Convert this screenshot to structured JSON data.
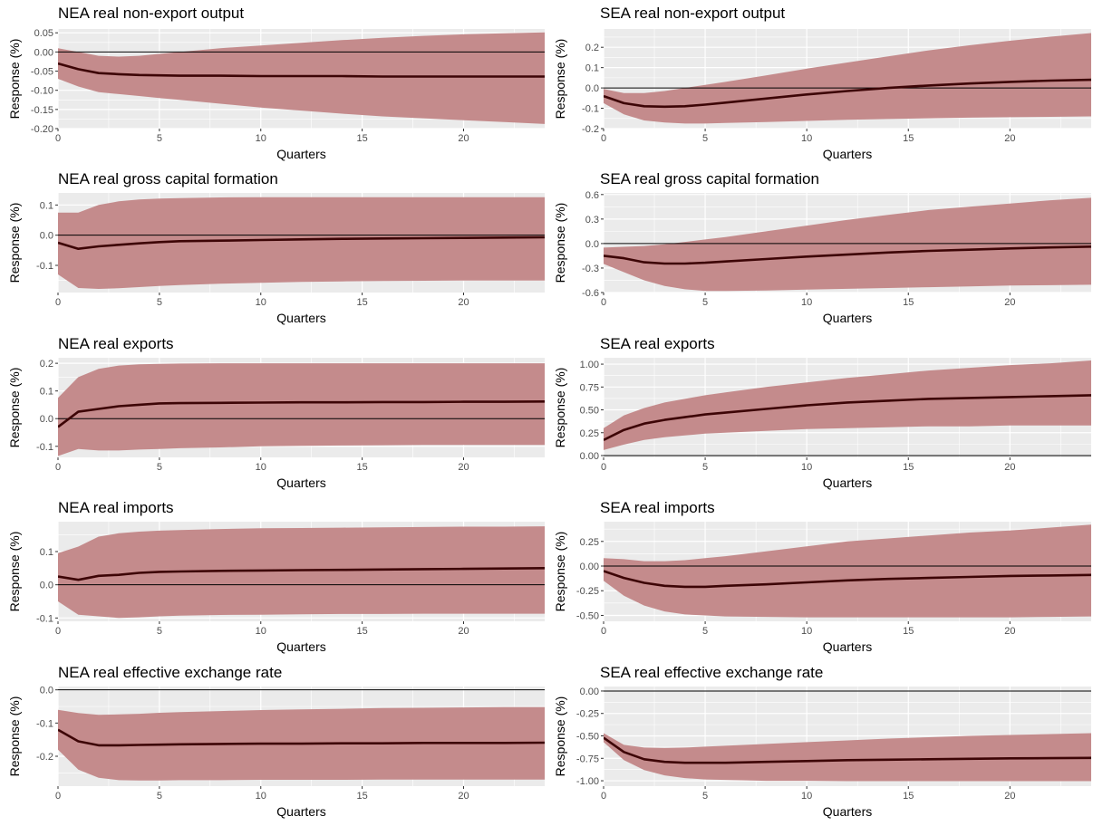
{
  "figure": {
    "xlabel": "Quarters",
    "ylabel": "Response (%)",
    "colors": {
      "panel_bg": "#ebebeb",
      "grid": "#ffffff",
      "band": "#c48b8c",
      "line": "#3d0506",
      "zero": "#000000"
    }
  },
  "chart_data": [
    {
      "type": "area",
      "title": "NEA real non-export output",
      "xlabel": "Quarters",
      "ylabel": "Response (%)",
      "xlim": [
        0,
        24
      ],
      "ylim": [
        -0.2,
        0.06
      ],
      "xticks": [
        0,
        5,
        10,
        15,
        20
      ],
      "yticks": [
        -0.2,
        -0.15,
        -0.1,
        -0.05,
        0,
        0.05
      ],
      "ytick_labels": [
        "-0.20",
        "-0.15",
        "-0.10",
        "-0.05",
        "0.00",
        "0.05"
      ],
      "x": [
        0,
        1,
        2,
        3,
        4,
        5,
        6,
        8,
        10,
        12,
        14,
        16,
        18,
        20,
        22,
        24
      ],
      "median": [
        -0.03,
        -0.045,
        -0.055,
        -0.058,
        -0.06,
        -0.061,
        -0.062,
        -0.062,
        -0.063,
        -0.063,
        -0.063,
        -0.064,
        -0.064,
        -0.064,
        -0.064,
        -0.064
      ],
      "upper": [
        0.01,
        0.0,
        -0.01,
        -0.012,
        -0.01,
        -0.005,
        0.0,
        0.01,
        0.017,
        0.024,
        0.031,
        0.037,
        0.042,
        0.046,
        0.049,
        0.051
      ],
      "lower": [
        -0.07,
        -0.09,
        -0.105,
        -0.11,
        -0.115,
        -0.12,
        -0.125,
        -0.135,
        -0.145,
        -0.153,
        -0.161,
        -0.168,
        -0.173,
        -0.178,
        -0.183,
        -0.188
      ]
    },
    {
      "type": "area",
      "title": "SEA real non-export output",
      "xlabel": "Quarters",
      "ylabel": "Response (%)",
      "xlim": [
        0,
        24
      ],
      "ylim": [
        -0.2,
        0.29
      ],
      "xticks": [
        0,
        5,
        10,
        15,
        20
      ],
      "yticks": [
        -0.2,
        -0.1,
        0,
        0.1,
        0.2
      ],
      "ytick_labels": [
        "-0.2",
        "-0.1",
        "0.0",
        "0.1",
        "0.2"
      ],
      "x": [
        0,
        1,
        2,
        3,
        4,
        5,
        6,
        8,
        10,
        12,
        14,
        16,
        18,
        20,
        22,
        24
      ],
      "median": [
        -0.04,
        -0.075,
        -0.09,
        -0.092,
        -0.09,
        -0.082,
        -0.072,
        -0.052,
        -0.032,
        -0.015,
        0.0,
        0.012,
        0.022,
        0.03,
        0.036,
        0.04
      ],
      "upper": [
        -0.005,
        -0.025,
        -0.025,
        -0.015,
        0.0,
        0.015,
        0.03,
        0.062,
        0.095,
        0.125,
        0.155,
        0.185,
        0.21,
        0.232,
        0.252,
        0.27
      ],
      "lower": [
        -0.075,
        -0.13,
        -0.16,
        -0.17,
        -0.175,
        -0.175,
        -0.172,
        -0.168,
        -0.162,
        -0.157,
        -0.153,
        -0.149,
        -0.146,
        -0.144,
        -0.142,
        -0.14
      ]
    },
    {
      "type": "area",
      "title": "NEA real gross capital formation",
      "xlabel": "Quarters",
      "ylabel": "Response (%)",
      "xlim": [
        0,
        24
      ],
      "ylim": [
        -0.19,
        0.14
      ],
      "xticks": [
        0,
        5,
        10,
        15,
        20
      ],
      "yticks": [
        -0.1,
        0,
        0.1
      ],
      "ytick_labels": [
        "-0.1",
        "0.0",
        "0.1"
      ],
      "x": [
        0,
        1,
        2,
        3,
        4,
        5,
        6,
        8,
        10,
        12,
        14,
        16,
        18,
        20,
        22,
        24
      ],
      "median": [
        -0.025,
        -0.045,
        -0.037,
        -0.032,
        -0.027,
        -0.023,
        -0.02,
        -0.018,
        -0.016,
        -0.014,
        -0.012,
        -0.011,
        -0.01,
        -0.009,
        -0.008,
        -0.007
      ],
      "upper": [
        0.075,
        0.075,
        0.1,
        0.112,
        0.118,
        0.121,
        0.123,
        0.125,
        0.126,
        0.126,
        0.126,
        0.126,
        0.126,
        0.126,
        0.126,
        0.126
      ],
      "lower": [
        -0.13,
        -0.175,
        -0.178,
        -0.176,
        -0.172,
        -0.168,
        -0.165,
        -0.161,
        -0.158,
        -0.155,
        -0.153,
        -0.152,
        -0.151,
        -0.15,
        -0.15,
        -0.15
      ]
    },
    {
      "type": "area",
      "title": "SEA real gross capital formation",
      "xlabel": "Quarters",
      "ylabel": "Response (%)",
      "xlim": [
        0,
        24
      ],
      "ylim": [
        -0.6,
        0.62
      ],
      "xticks": [
        0,
        5,
        10,
        15,
        20
      ],
      "yticks": [
        -0.6,
        -0.3,
        0,
        0.3,
        0.6
      ],
      "ytick_labels": [
        "-0.6",
        "-0.3",
        "0.0",
        "0.3",
        "0.6"
      ],
      "x": [
        0,
        1,
        2,
        3,
        4,
        5,
        6,
        8,
        10,
        12,
        14,
        16,
        18,
        20,
        22,
        24
      ],
      "median": [
        -0.15,
        -0.18,
        -0.23,
        -0.245,
        -0.245,
        -0.235,
        -0.22,
        -0.19,
        -0.16,
        -0.135,
        -0.11,
        -0.09,
        -0.075,
        -0.06,
        -0.048,
        -0.038
      ],
      "upper": [
        -0.05,
        -0.04,
        -0.03,
        -0.01,
        0.02,
        0.05,
        0.08,
        0.15,
        0.22,
        0.29,
        0.35,
        0.41,
        0.45,
        0.49,
        0.53,
        0.56
      ],
      "lower": [
        -0.25,
        -0.35,
        -0.45,
        -0.52,
        -0.56,
        -0.58,
        -0.58,
        -0.575,
        -0.565,
        -0.555,
        -0.545,
        -0.535,
        -0.525,
        -0.515,
        -0.51,
        -0.505
      ]
    },
    {
      "type": "area",
      "title": "NEA real exports",
      "xlabel": "Quarters",
      "ylabel": "Response (%)",
      "xlim": [
        0,
        24
      ],
      "ylim": [
        -0.14,
        0.22
      ],
      "xticks": [
        0,
        5,
        10,
        15,
        20
      ],
      "yticks": [
        -0.1,
        0,
        0.1,
        0.2
      ],
      "ytick_labels": [
        "-0.1",
        "0.0",
        "0.1",
        "0.2"
      ],
      "x": [
        0,
        1,
        2,
        3,
        4,
        5,
        6,
        8,
        10,
        12,
        14,
        16,
        18,
        20,
        22,
        24
      ],
      "median": [
        -0.03,
        0.025,
        0.035,
        0.045,
        0.05,
        0.055,
        0.056,
        0.057,
        0.058,
        0.059,
        0.059,
        0.06,
        0.06,
        0.061,
        0.061,
        0.062
      ],
      "upper": [
        0.075,
        0.15,
        0.18,
        0.192,
        0.196,
        0.198,
        0.199,
        0.2,
        0.2,
        0.2,
        0.2,
        0.2,
        0.2,
        0.2,
        0.2,
        0.2
      ],
      "lower": [
        -0.135,
        -0.11,
        -0.115,
        -0.115,
        -0.112,
        -0.11,
        -0.107,
        -0.104,
        -0.1,
        -0.098,
        -0.097,
        -0.096,
        -0.095,
        -0.095,
        -0.095,
        -0.095
      ]
    },
    {
      "type": "area",
      "title": "SEA real exports",
      "xlabel": "Quarters",
      "ylabel": "Response (%)",
      "xlim": [
        0,
        24
      ],
      "ylim": [
        -0.02,
        1.07
      ],
      "xticks": [
        0,
        5,
        10,
        15,
        20
      ],
      "yticks": [
        0,
        0.25,
        0.5,
        0.75,
        1.0
      ],
      "ytick_labels": [
        "0.00",
        "0.25",
        "0.50",
        "0.75",
        "1.00"
      ],
      "x": [
        0,
        1,
        2,
        3,
        4,
        5,
        6,
        8,
        10,
        12,
        14,
        16,
        18,
        20,
        22,
        24
      ],
      "median": [
        0.17,
        0.28,
        0.35,
        0.39,
        0.42,
        0.45,
        0.47,
        0.51,
        0.55,
        0.58,
        0.6,
        0.62,
        0.63,
        0.64,
        0.65,
        0.66
      ],
      "upper": [
        0.3,
        0.44,
        0.52,
        0.58,
        0.62,
        0.66,
        0.69,
        0.75,
        0.8,
        0.85,
        0.89,
        0.93,
        0.96,
        0.99,
        1.01,
        1.04
      ],
      "lower": [
        0.06,
        0.12,
        0.17,
        0.2,
        0.22,
        0.24,
        0.25,
        0.27,
        0.29,
        0.3,
        0.31,
        0.32,
        0.32,
        0.33,
        0.33,
        0.33
      ]
    },
    {
      "type": "area",
      "title": "NEA real imports",
      "xlabel": "Quarters",
      "ylabel": "Response (%)",
      "xlim": [
        0,
        24
      ],
      "ylim": [
        -0.11,
        0.19
      ],
      "xticks": [
        0,
        5,
        10,
        15,
        20
      ],
      "yticks": [
        -0.1,
        0,
        0.1
      ],
      "ytick_labels": [
        "-0.1",
        "0.0",
        "0.1"
      ],
      "x": [
        0,
        1,
        2,
        3,
        4,
        5,
        6,
        8,
        10,
        12,
        14,
        16,
        18,
        20,
        22,
        24
      ],
      "median": [
        0.025,
        0.015,
        0.027,
        0.03,
        0.036,
        0.039,
        0.04,
        0.042,
        0.043,
        0.044,
        0.045,
        0.046,
        0.047,
        0.048,
        0.049,
        0.05
      ],
      "upper": [
        0.095,
        0.115,
        0.145,
        0.155,
        0.16,
        0.163,
        0.165,
        0.168,
        0.17,
        0.171,
        0.172,
        0.173,
        0.174,
        0.175,
        0.175,
        0.176
      ],
      "lower": [
        -0.05,
        -0.09,
        -0.095,
        -0.1,
        -0.098,
        -0.095,
        -0.093,
        -0.091,
        -0.09,
        -0.089,
        -0.088,
        -0.088,
        -0.087,
        -0.087,
        -0.087,
        -0.087
      ]
    },
    {
      "type": "area",
      "title": "SEA real imports",
      "xlabel": "Quarters",
      "ylabel": "Response (%)",
      "xlim": [
        0,
        24
      ],
      "ylim": [
        -0.56,
        0.45
      ],
      "xticks": [
        0,
        5,
        10,
        15,
        20
      ],
      "yticks": [
        -0.5,
        -0.25,
        0,
        0.25
      ],
      "ytick_labels": [
        "-0.50",
        "-0.25",
        "0.00",
        "0.25"
      ],
      "x": [
        0,
        1,
        2,
        3,
        4,
        5,
        6,
        8,
        10,
        12,
        14,
        16,
        18,
        20,
        22,
        24
      ],
      "median": [
        -0.05,
        -0.12,
        -0.17,
        -0.2,
        -0.21,
        -0.21,
        -0.2,
        -0.185,
        -0.165,
        -0.145,
        -0.13,
        -0.12,
        -0.11,
        -0.1,
        -0.095,
        -0.09
      ],
      "upper": [
        0.08,
        0.07,
        0.05,
        0.05,
        0.06,
        0.08,
        0.1,
        0.15,
        0.2,
        0.25,
        0.28,
        0.31,
        0.34,
        0.36,
        0.39,
        0.42
      ],
      "lower": [
        -0.15,
        -0.3,
        -0.4,
        -0.46,
        -0.49,
        -0.5,
        -0.51,
        -0.515,
        -0.52,
        -0.52,
        -0.52,
        -0.52,
        -0.52,
        -0.52,
        -0.515,
        -0.51
      ]
    },
    {
      "type": "area",
      "title": "NEA real effective exchange rate",
      "xlabel": "Quarters",
      "ylabel": "Response (%)",
      "xlim": [
        0,
        24
      ],
      "ylim": [
        -0.29,
        0.01
      ],
      "xticks": [
        0,
        5,
        10,
        15,
        20
      ],
      "yticks": [
        -0.2,
        -0.1,
        0
      ],
      "ytick_labels": [
        "-0.2",
        "-0.1",
        "0.0"
      ],
      "x": [
        0,
        1,
        2,
        3,
        4,
        5,
        6,
        8,
        10,
        12,
        14,
        16,
        18,
        20,
        22,
        24
      ],
      "median": [
        -0.12,
        -0.155,
        -0.167,
        -0.167,
        -0.166,
        -0.165,
        -0.164,
        -0.163,
        -0.162,
        -0.162,
        -0.161,
        -0.161,
        -0.16,
        -0.16,
        -0.16,
        -0.159
      ],
      "upper": [
        -0.06,
        -0.07,
        -0.075,
        -0.074,
        -0.072,
        -0.069,
        -0.067,
        -0.064,
        -0.061,
        -0.059,
        -0.057,
        -0.055,
        -0.054,
        -0.053,
        -0.052,
        -0.052
      ],
      "lower": [
        -0.18,
        -0.24,
        -0.265,
        -0.272,
        -0.273,
        -0.273,
        -0.272,
        -0.272,
        -0.271,
        -0.271,
        -0.271,
        -0.27,
        -0.27,
        -0.27,
        -0.27,
        -0.27
      ]
    },
    {
      "type": "area",
      "title": "SEA real effective exchange rate",
      "xlabel": "Quarters",
      "ylabel": "Response (%)",
      "xlim": [
        0,
        24
      ],
      "ylim": [
        -1.06,
        0.05
      ],
      "xticks": [
        0,
        5,
        10,
        15,
        20
      ],
      "yticks": [
        -1.0,
        -0.75,
        -0.5,
        -0.25,
        0
      ],
      "ytick_labels": [
        "-1.00",
        "-0.75",
        "-0.50",
        "-0.25",
        "0.00"
      ],
      "x": [
        0,
        1,
        2,
        3,
        4,
        5,
        6,
        8,
        10,
        12,
        14,
        16,
        18,
        20,
        22,
        24
      ],
      "median": [
        -0.52,
        -0.68,
        -0.76,
        -0.79,
        -0.8,
        -0.8,
        -0.8,
        -0.79,
        -0.78,
        -0.77,
        -0.765,
        -0.76,
        -0.755,
        -0.75,
        -0.748,
        -0.745
      ],
      "upper": [
        -0.47,
        -0.6,
        -0.63,
        -0.635,
        -0.63,
        -0.62,
        -0.61,
        -0.59,
        -0.57,
        -0.55,
        -0.53,
        -0.515,
        -0.5,
        -0.49,
        -0.48,
        -0.47
      ],
      "lower": [
        -0.57,
        -0.77,
        -0.88,
        -0.94,
        -0.97,
        -0.985,
        -0.99,
        -1.0,
        -1.0,
        -1.005,
        -1.005,
        -1.005,
        -1.005,
        -1.005,
        -1.005,
        -1.005
      ]
    }
  ]
}
